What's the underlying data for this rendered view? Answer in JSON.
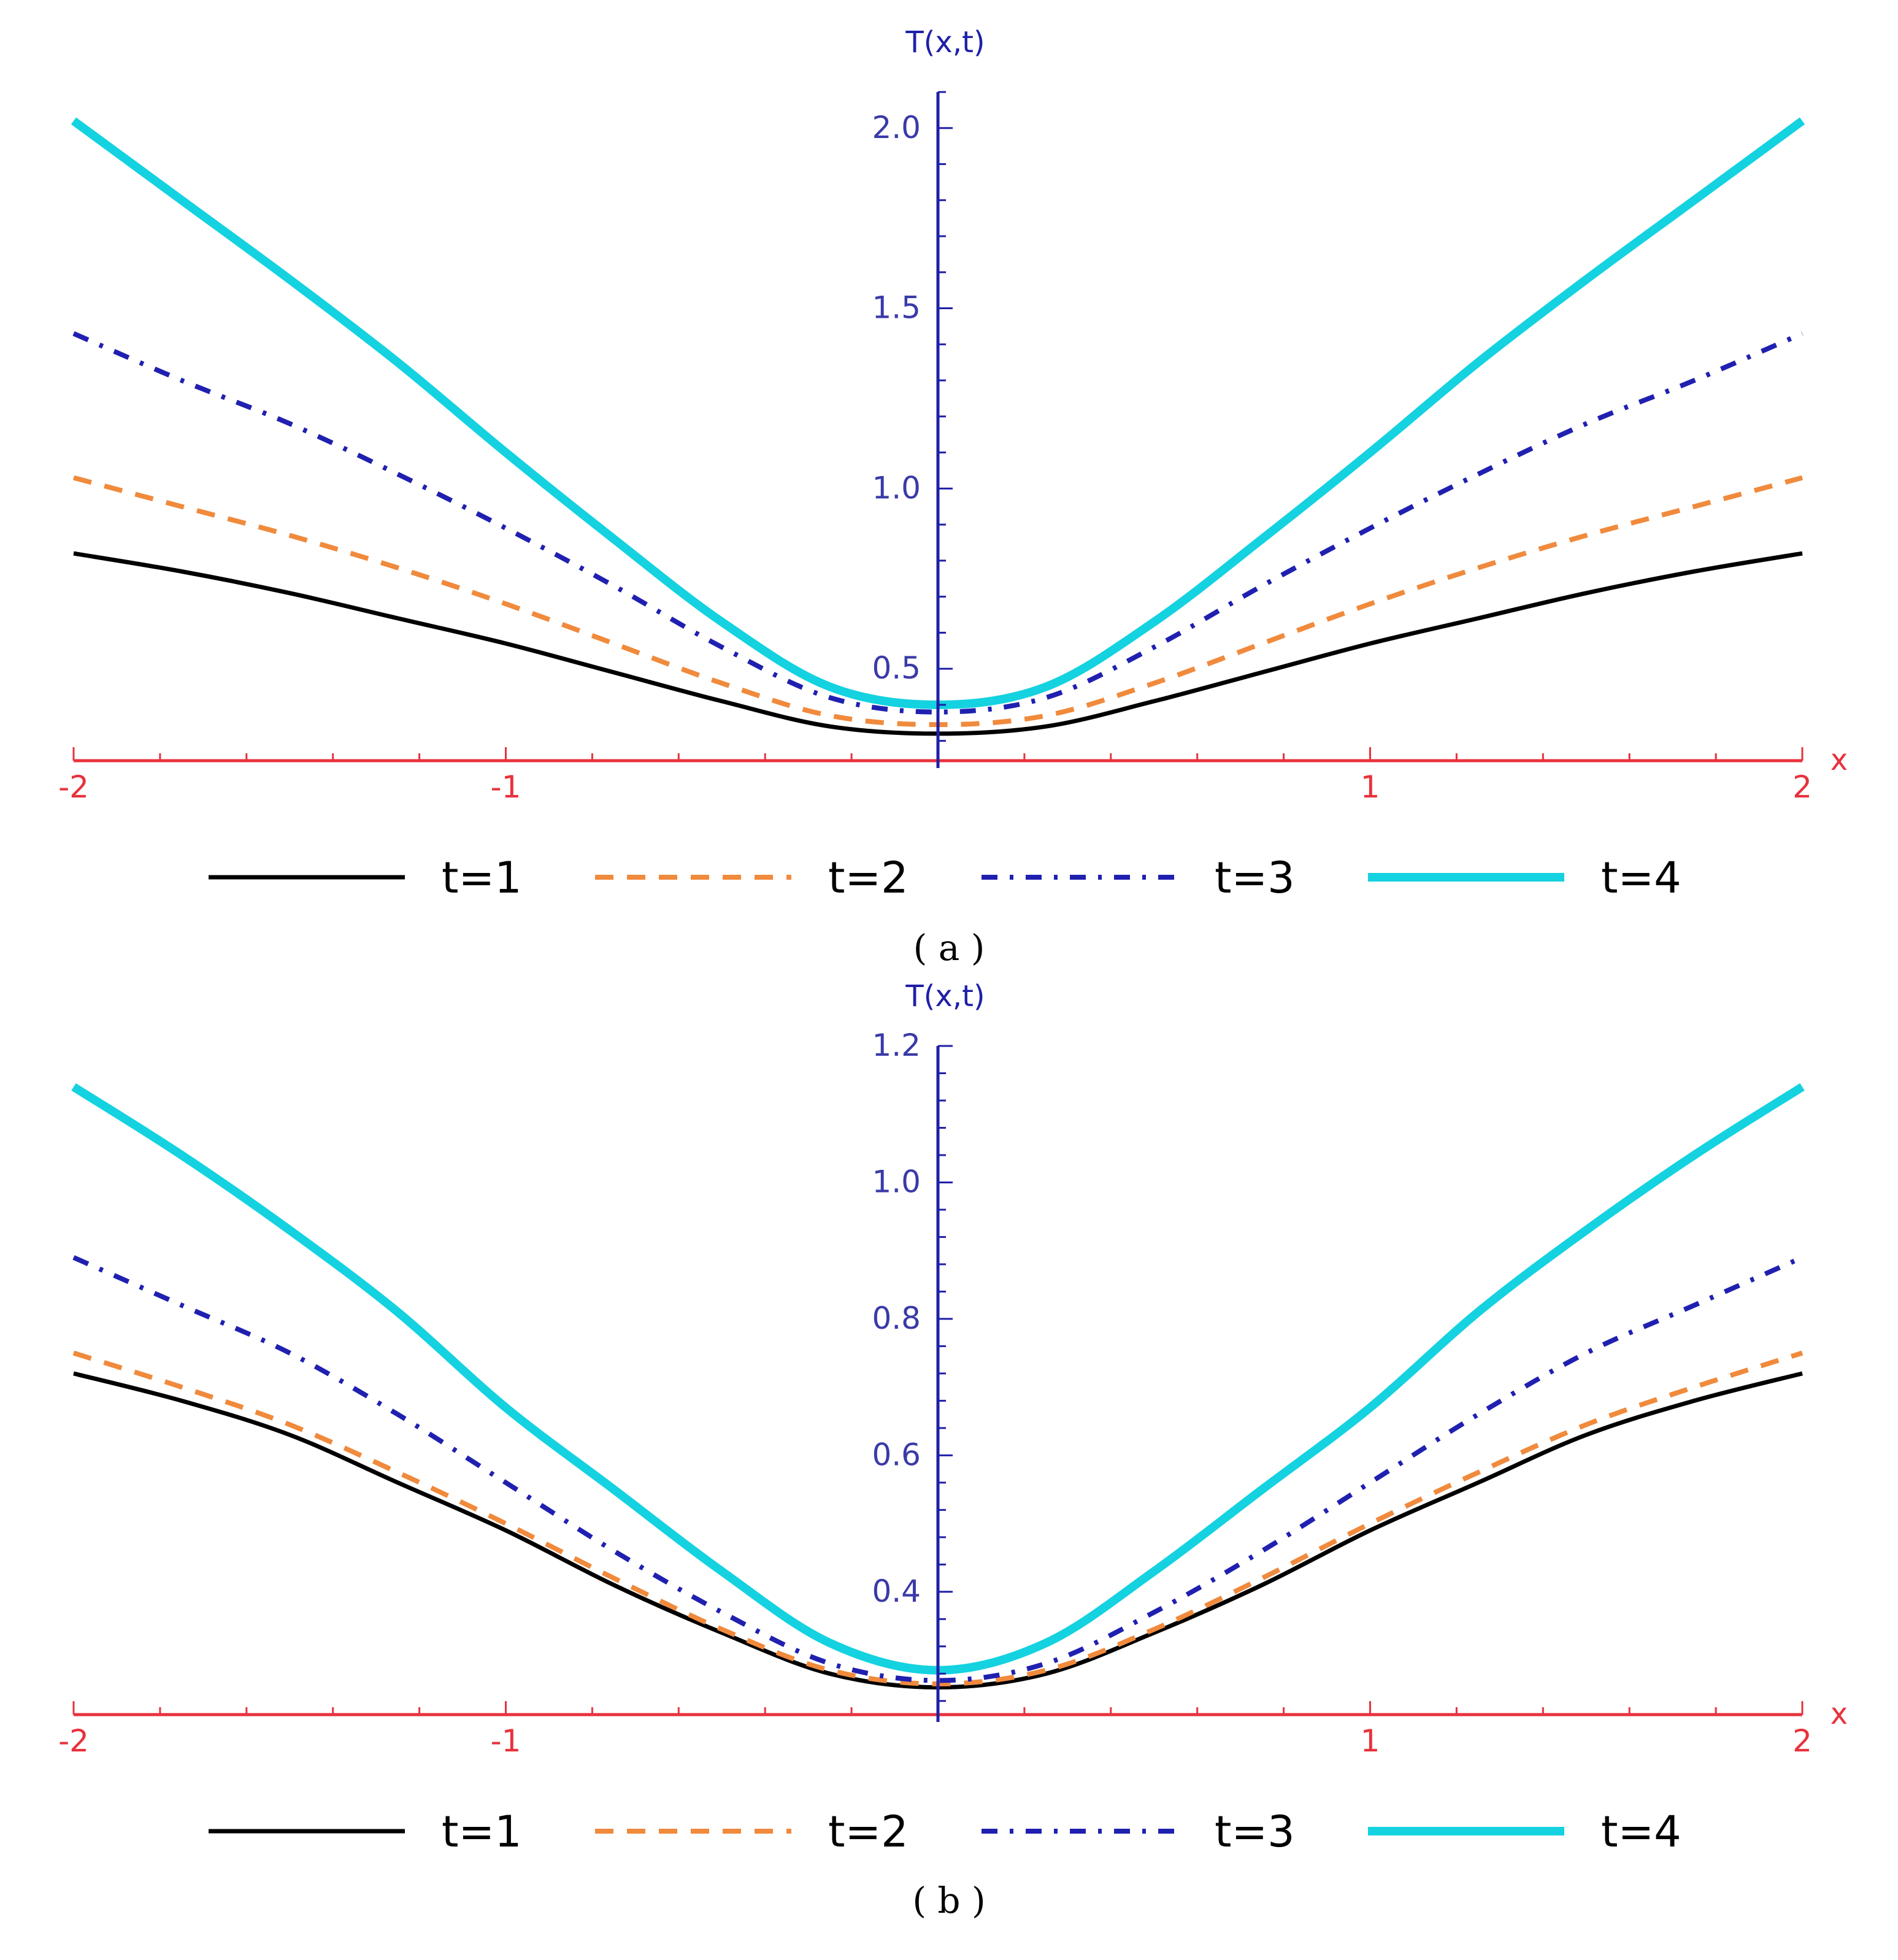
{
  "figure": {
    "colors": {
      "x_axis": "#e8323c",
      "y_axis": "#1f1fa8",
      "y_tick_text": "#3a3aa8",
      "x_tick_text": "#e8323c"
    }
  },
  "chart_data": [
    {
      "panel": "a",
      "panel_label": "( a )",
      "type": "line",
      "xlabel": "x",
      "ylabel": "T(x,t)",
      "xlim": [
        -2,
        2
      ],
      "ylim": [
        0.245,
        2.1
      ],
      "x_ticks": [
        -2,
        -1,
        1,
        2
      ],
      "x_tick_labels": [
        "-2",
        "-1",
        "1",
        "2"
      ],
      "y_ticks": [
        0.5,
        1.0,
        1.5,
        2.0
      ],
      "y_tick_labels": [
        "0.5",
        "1.0",
        "1.5",
        "2.0"
      ],
      "grid": false,
      "legend_position": "bottom",
      "x": [
        -2,
        -1.75,
        -1.5,
        -1.25,
        -1,
        -0.75,
        -0.5,
        -0.25,
        0,
        0.25,
        0.5,
        0.75,
        1,
        1.25,
        1.5,
        1.75,
        2
      ],
      "series": [
        {
          "name": "t=1",
          "style": "solid",
          "color": "#000000",
          "values": [
            0.82,
            0.77,
            0.71,
            0.64,
            0.57,
            0.49,
            0.41,
            0.34,
            0.32,
            0.34,
            0.41,
            0.49,
            0.57,
            0.64,
            0.71,
            0.77,
            0.82
          ]
        },
        {
          "name": "t=2",
          "style": "dashed",
          "color": "#f08a3c",
          "values": [
            1.03,
            0.95,
            0.87,
            0.78,
            0.68,
            0.57,
            0.46,
            0.37,
            0.345,
            0.37,
            0.46,
            0.57,
            0.68,
            0.78,
            0.87,
            0.95,
            1.03
          ]
        },
        {
          "name": "t=3",
          "style": "dashdot",
          "color": "#2020b0",
          "values": [
            1.43,
            1.3,
            1.18,
            1.04,
            0.89,
            0.73,
            0.56,
            0.42,
            0.38,
            0.42,
            0.56,
            0.73,
            0.89,
            1.04,
            1.18,
            1.3,
            1.43
          ]
        },
        {
          "name": "t=4",
          "style": "solid-thick",
          "color": "#14d2e0",
          "values": [
            2.02,
            1.8,
            1.58,
            1.35,
            1.1,
            0.86,
            0.63,
            0.45,
            0.4,
            0.45,
            0.63,
            0.86,
            1.1,
            1.35,
            1.58,
            1.8,
            2.02
          ]
        }
      ]
    },
    {
      "panel": "b",
      "panel_label": "( b )",
      "type": "line",
      "xlabel": "x",
      "ylabel": "T(x,t)",
      "xlim": [
        -2,
        2
      ],
      "ylim": [
        0.22,
        1.2
      ],
      "x_ticks": [
        -2,
        -1,
        1,
        2
      ],
      "x_tick_labels": [
        "-2",
        "-1",
        "1",
        "2"
      ],
      "y_ticks": [
        0.4,
        0.6,
        0.8,
        1.0,
        1.2
      ],
      "y_tick_labels": [
        "0.4",
        "0.6",
        "0.8",
        "1.0",
        "1.2"
      ],
      "grid": false,
      "legend_position": "bottom",
      "x": [
        -2,
        -1.75,
        -1.5,
        -1.25,
        -1,
        -0.75,
        -0.5,
        -0.25,
        0,
        0.25,
        0.5,
        0.75,
        1,
        1.25,
        1.5,
        1.75,
        2
      ],
      "series": [
        {
          "name": "t=1",
          "style": "solid",
          "color": "#000000",
          "values": [
            0.72,
            0.68,
            0.63,
            0.56,
            0.49,
            0.41,
            0.34,
            0.28,
            0.26,
            0.28,
            0.34,
            0.41,
            0.49,
            0.56,
            0.63,
            0.68,
            0.72
          ]
        },
        {
          "name": "t=2",
          "style": "dashed",
          "color": "#f08a3c",
          "values": [
            0.75,
            0.7,
            0.645,
            0.575,
            0.5,
            0.42,
            0.345,
            0.285,
            0.265,
            0.285,
            0.345,
            0.42,
            0.5,
            0.575,
            0.645,
            0.7,
            0.75
          ]
        },
        {
          "name": "t=3",
          "style": "dashdot",
          "color": "#2020b0",
          "values": [
            0.89,
            0.82,
            0.75,
            0.66,
            0.56,
            0.46,
            0.37,
            0.295,
            0.27,
            0.295,
            0.37,
            0.46,
            0.56,
            0.66,
            0.75,
            0.82,
            0.89
          ]
        },
        {
          "name": "t=4",
          "style": "solid-thick",
          "color": "#14d2e0",
          "values": [
            1.14,
            1.04,
            0.93,
            0.81,
            0.67,
            0.55,
            0.43,
            0.325,
            0.285,
            0.325,
            0.43,
            0.55,
            0.67,
            0.81,
            0.93,
            1.04,
            1.14
          ]
        }
      ]
    }
  ]
}
